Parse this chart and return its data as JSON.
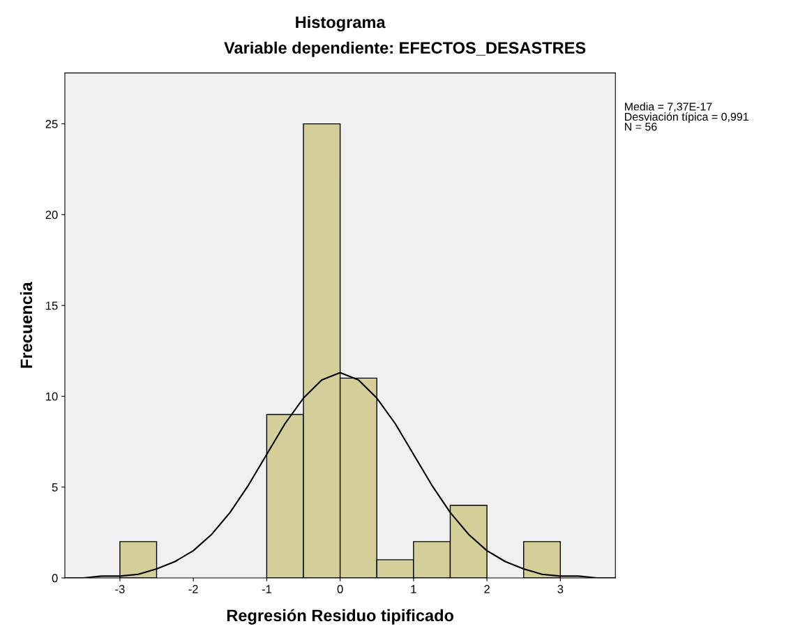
{
  "chart_data": {
    "type": "histogram",
    "title": "Histograma",
    "subtitle": "Variable dependiente: EFECTOS_DESASTRES",
    "xlabel": "Regresión Residuo tipificado",
    "ylabel": "Frecuencia",
    "annotations": [
      "Media = 7,37E-17\nDesviación típica = 0,991\nN = 56"
    ],
    "series": [
      {
        "color": "#d4cf99",
        "bins": [
          -3,
          -2.5,
          -2,
          -1.5,
          -1,
          -0.5,
          0,
          0.5,
          1,
          1.5,
          2,
          2.5,
          3
        ],
        "values": [
          2,
          0,
          0,
          0,
          9,
          25,
          11,
          1,
          2,
          4,
          0,
          2
        ]
      },
      {
        "type": "line",
        "color": "#000000",
        "x": [
          -3.75,
          -3.5,
          -3.25,
          -3,
          -2.75,
          -2.5,
          -2.25,
          -2,
          -1.75,
          -1.5,
          -1.25,
          -1,
          -0.75,
          -0.5,
          -0.25,
          0,
          0.25,
          0.5,
          0.75,
          1,
          1.25,
          1.5,
          1.75,
          2,
          2.25,
          2.5,
          2.75,
          3,
          3.25,
          3.5,
          3.75
        ],
        "values": [
          0.0,
          0.0,
          0.1,
          0.1,
          0.2,
          0.5,
          0.9,
          1.5,
          2.4,
          3.6,
          5.1,
          6.8,
          8.5,
          9.9,
          10.9,
          11.3,
          10.9,
          9.9,
          8.5,
          6.8,
          5.1,
          3.6,
          2.4,
          1.5,
          0.9,
          0.5,
          0.2,
          0.1,
          0.1,
          0.0,
          0.0
        ]
      }
    ],
    "xlim": [
      -3.75,
      3.75
    ],
    "ylim": [
      0,
      27.8
    ],
    "xticks": [
      -3,
      -2,
      -1,
      0,
      1,
      2,
      3
    ],
    "yticks": [
      0,
      5,
      10,
      15,
      20,
      25
    ],
    "grid": false,
    "legend": false
  }
}
